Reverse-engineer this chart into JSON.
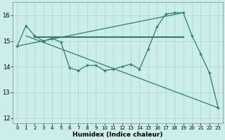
{
  "xlabel": "Humidex (Indice chaleur)",
  "bg_color": "#cceee8",
  "grid_color": "#aad4cc",
  "line_color": "#2e7d6e",
  "xlim": [
    -0.5,
    23.5
  ],
  "ylim": [
    11.8,
    16.5
  ],
  "yticks": [
    12,
    13,
    14,
    15,
    16
  ],
  "xticks": [
    0,
    1,
    2,
    3,
    4,
    5,
    6,
    7,
    8,
    9,
    10,
    11,
    12,
    13,
    14,
    15,
    16,
    17,
    18,
    19,
    20,
    21,
    22,
    23
  ],
  "series1_x": [
    0,
    1,
    2,
    3,
    4,
    5,
    6,
    7,
    8,
    9,
    10,
    11,
    12,
    13,
    14,
    15,
    16,
    17,
    18,
    19,
    20,
    21,
    22,
    23
  ],
  "series1_y": [
    14.8,
    15.6,
    15.2,
    15.0,
    15.1,
    14.95,
    13.95,
    13.85,
    14.05,
    14.05,
    13.85,
    13.9,
    14.0,
    14.1,
    13.9,
    14.7,
    15.55,
    16.05,
    16.1,
    16.1,
    15.2,
    14.5,
    13.75,
    12.4
  ],
  "series2_x": [
    1,
    23
  ],
  "series2_y": [
    15.2,
    12.4
  ],
  "series3_x": [
    2,
    19
  ],
  "series3_y": [
    15.15,
    15.15
  ],
  "series4_x": [
    0,
    19
  ],
  "series4_y": [
    14.8,
    16.1
  ]
}
